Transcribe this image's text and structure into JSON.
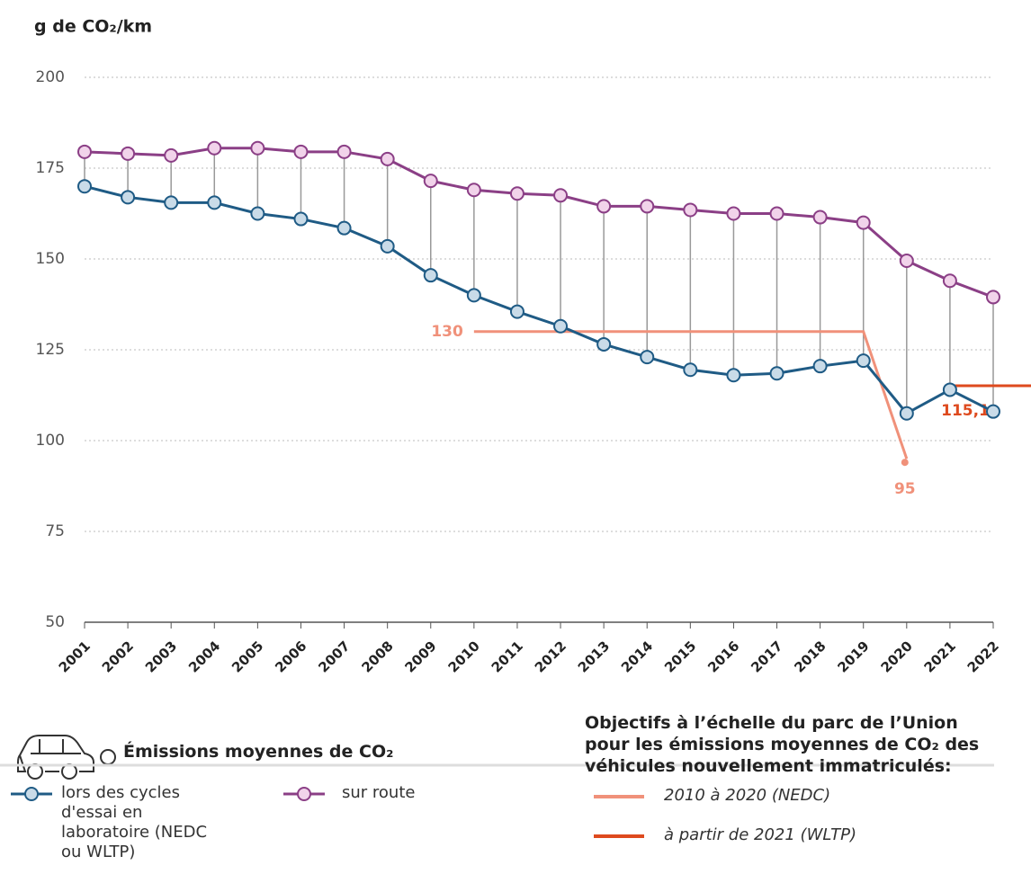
{
  "chart_data": {
    "type": "line",
    "title": "g de CO₂/km",
    "x": [
      2001,
      2002,
      2003,
      2004,
      2005,
      2006,
      2007,
      2008,
      2009,
      2010,
      2011,
      2012,
      2013,
      2014,
      2015,
      2016,
      2017,
      2018,
      2019,
      2020,
      2021,
      2022
    ],
    "xlim": [
      2001,
      2022
    ],
    "ylim": [
      50,
      200
    ],
    "yticks": [
      50,
      75,
      100,
      125,
      150,
      175,
      200
    ],
    "grid": true,
    "legend_title": "Émissions moyennes de CO₂",
    "series": [
      {
        "name": "lors des cycles d'essai en laboratoire (NEDC ou WLTP)",
        "color": "#1f5b85",
        "marker_fill": "#c9dbe8",
        "values": [
          170,
          167,
          165.5,
          165.5,
          162.5,
          161,
          158.5,
          153.5,
          145.5,
          140,
          135.5,
          131.5,
          126.5,
          123,
          119.5,
          118,
          118.5,
          120.5,
          122,
          107.5,
          114,
          108
        ]
      },
      {
        "name": "sur route",
        "color": "#8b3f86",
        "marker_fill": "#f1d3ea",
        "values": [
          179.5,
          179,
          178.5,
          180.5,
          180.5,
          179.5,
          179.5,
          177.5,
          171.5,
          169,
          168,
          167.5,
          164.5,
          164.5,
          163.5,
          162.5,
          162.5,
          161.5,
          160,
          149.5,
          144,
          139.5
        ]
      }
    ],
    "targets_title": "Objectifs à l’échelle du parc de l’Union pour les émissions moyennes de CO₂ des véhicules nouvellement immatriculés:",
    "targets": [
      {
        "name": "2010 à 2020 (NEDC)",
        "color": "#f0917a",
        "x": [
          2010,
          2019,
          2020
        ],
        "values": [
          130,
          130,
          95
        ],
        "value_labels": [
          "130",
          null,
          "95"
        ]
      },
      {
        "name": "à partir de 2021 (WLTP)",
        "color": "#de4a1e",
        "x": [
          2021,
          2023
        ],
        "values": [
          115.1,
          115.1
        ],
        "value_labels": [
          "115,1",
          null
        ]
      }
    ]
  }
}
